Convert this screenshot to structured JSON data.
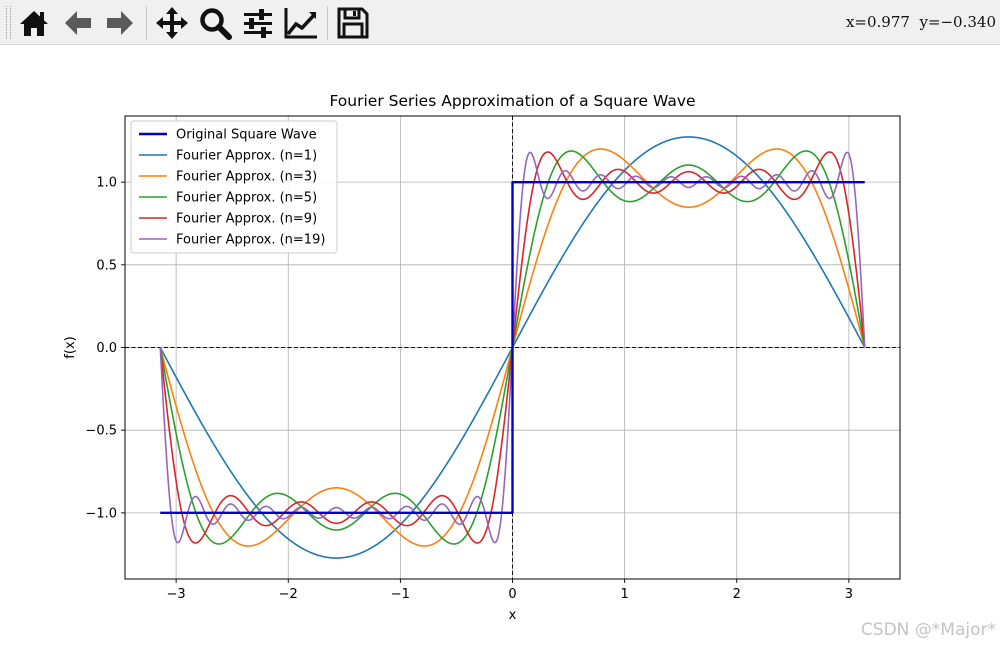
{
  "toolbar": {
    "buttons": [
      {
        "name": "home-button",
        "icon": "home-icon"
      },
      {
        "name": "back-button",
        "icon": "arrow-left-icon"
      },
      {
        "name": "forward-button",
        "icon": "arrow-right-icon"
      },
      {
        "name": "pan-button",
        "icon": "move-icon"
      },
      {
        "name": "zoom-button",
        "icon": "magnifier-icon"
      },
      {
        "name": "configure-subplots-button",
        "icon": "sliders-icon"
      },
      {
        "name": "edit-axis-button",
        "icon": "line-chart-icon"
      },
      {
        "name": "save-button",
        "icon": "floppy-disk-icon"
      }
    ],
    "coords": "x=0.977  y=−0.340"
  },
  "watermark": "CSDN @*Major*",
  "chart_data": {
    "type": "line",
    "title": "Fourier Series Approximation of a Square Wave",
    "xlabel": "x",
    "ylabel": "f(x)",
    "xlim": [
      -3.456,
      3.456
    ],
    "ylim": [
      -1.4,
      1.4
    ],
    "xticks": [
      -3,
      -2,
      -1,
      0,
      1,
      2,
      3
    ],
    "xtick_labels": [
      "−3",
      "−2",
      "−1",
      "0",
      "1",
      "2",
      "3"
    ],
    "yticks": [
      -1.0,
      -0.5,
      0.0,
      0.5,
      1.0
    ],
    "ytick_labels": [
      "−1.0",
      "−0.5",
      "0.0",
      "0.5",
      "1.0"
    ],
    "grid": true,
    "reference_lines": {
      "x": 0,
      "y": 0,
      "style": "dashed",
      "color": "#000000"
    },
    "legend_position": "top-left",
    "x_range": [
      -3.14159,
      3.14159
    ],
    "series": [
      {
        "name": "Original Square Wave",
        "kind": "square_wave",
        "color": "#0000cc",
        "bold": true,
        "x": [
          -3.14159,
          0,
          0,
          3.14159
        ],
        "y": [
          -1,
          -1,
          1,
          1
        ]
      },
      {
        "name": "Fourier Approx. (n=1)",
        "kind": "fourier",
        "n": 1,
        "color": "#1f77b4"
      },
      {
        "name": "Fourier Approx. (n=3)",
        "kind": "fourier",
        "n": 3,
        "color": "#ff7f0e"
      },
      {
        "name": "Fourier Approx. (n=5)",
        "kind": "fourier",
        "n": 5,
        "color": "#2ca02c"
      },
      {
        "name": "Fourier Approx. (n=9)",
        "kind": "fourier",
        "n": 9,
        "color": "#d62728"
      },
      {
        "name": "Fourier Approx. (n=19)",
        "kind": "fourier",
        "n": 19,
        "color": "#9467bd"
      }
    ]
  }
}
